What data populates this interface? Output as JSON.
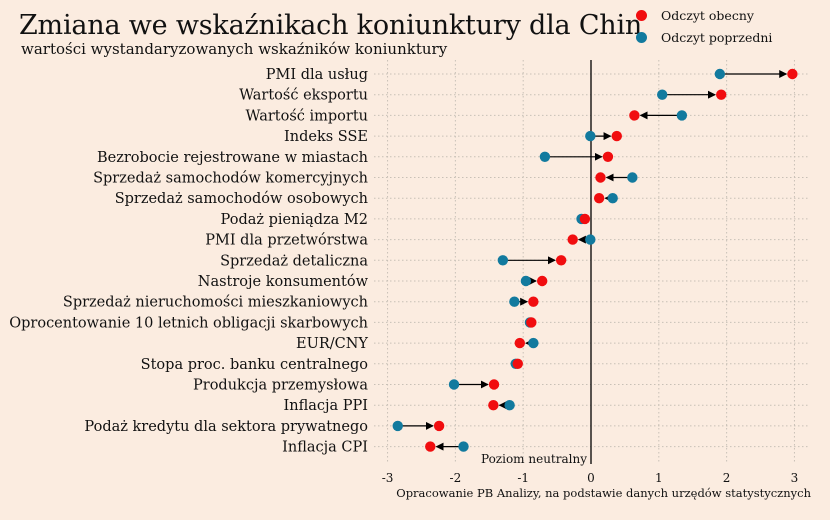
{
  "header": {
    "title": "Zmiana we wskaźnikach koniunktury dla Chin",
    "subtitle": "wartości wystandaryzowanych wskaźników koniunktury"
  },
  "legend": {
    "current": "Odczyt obecny",
    "previous": "Odczyt poprzedni"
  },
  "colors": {
    "current": "#f10d0f",
    "previous": "#127a9e",
    "arrow": "#000000",
    "background": "#fbece0",
    "grid": "#c8c0b6"
  },
  "source": "Opracowanie PB Analizy, na podstawie danych urzędów statystycznych",
  "chart_data": {
    "type": "scatter",
    "title": "Zmiana we wskaźnikach koniunktury dla Chin",
    "subtitle": "wartości wystandaryzowanych wskaźników koniunktury",
    "xlabel": "",
    "ylabel": "",
    "xlim": [
      -3.2,
      3.2
    ],
    "xticks": [
      -3,
      -2,
      -1,
      0,
      1,
      2,
      3
    ],
    "grid": true,
    "legend_position": "top-right",
    "reference_line": {
      "x": 0,
      "label": "Poziom neutralny"
    },
    "categories": [
      "PMI dla usług",
      "Wartość eksportu",
      "Wartość importu",
      "Indeks SSE",
      "Bezrobocie rejestrowane w miastach",
      "Sprzedaż samochodów komercyjnych",
      "Sprzedaż samochodów osobowych",
      "Podaż pieniądza M2",
      "PMI dla przetwórstwa",
      "Sprzedaż detaliczna",
      "Nastroje konsumentów",
      "Sprzedaż nieruchomości mieszkaniowych",
      "Oprocentowanie 10 letnich obligacji skarbowych",
      "EUR/CNY",
      "Stopa proc. banku centralnego",
      "Produkcja przemysłowa",
      "Inflacja PPI",
      "Podaż kredytu dla sektora prywatnego",
      "Inflacja CPI"
    ],
    "series": [
      {
        "name": "Odczyt obecny",
        "values": [
          2.97,
          1.92,
          0.64,
          0.38,
          0.25,
          0.14,
          0.12,
          -0.09,
          -0.27,
          -0.44,
          -0.72,
          -0.85,
          -0.88,
          -1.05,
          -1.08,
          -1.43,
          -1.44,
          -2.24,
          -2.37
        ]
      },
      {
        "name": "Odczyt poprzedni",
        "values": [
          1.9,
          1.05,
          1.34,
          -0.01,
          -0.68,
          0.61,
          0.32,
          -0.14,
          -0.01,
          -1.3,
          -0.96,
          -1.13,
          -0.9,
          -0.85,
          -1.11,
          -2.02,
          -1.2,
          -2.85,
          -1.88
        ]
      }
    ]
  }
}
